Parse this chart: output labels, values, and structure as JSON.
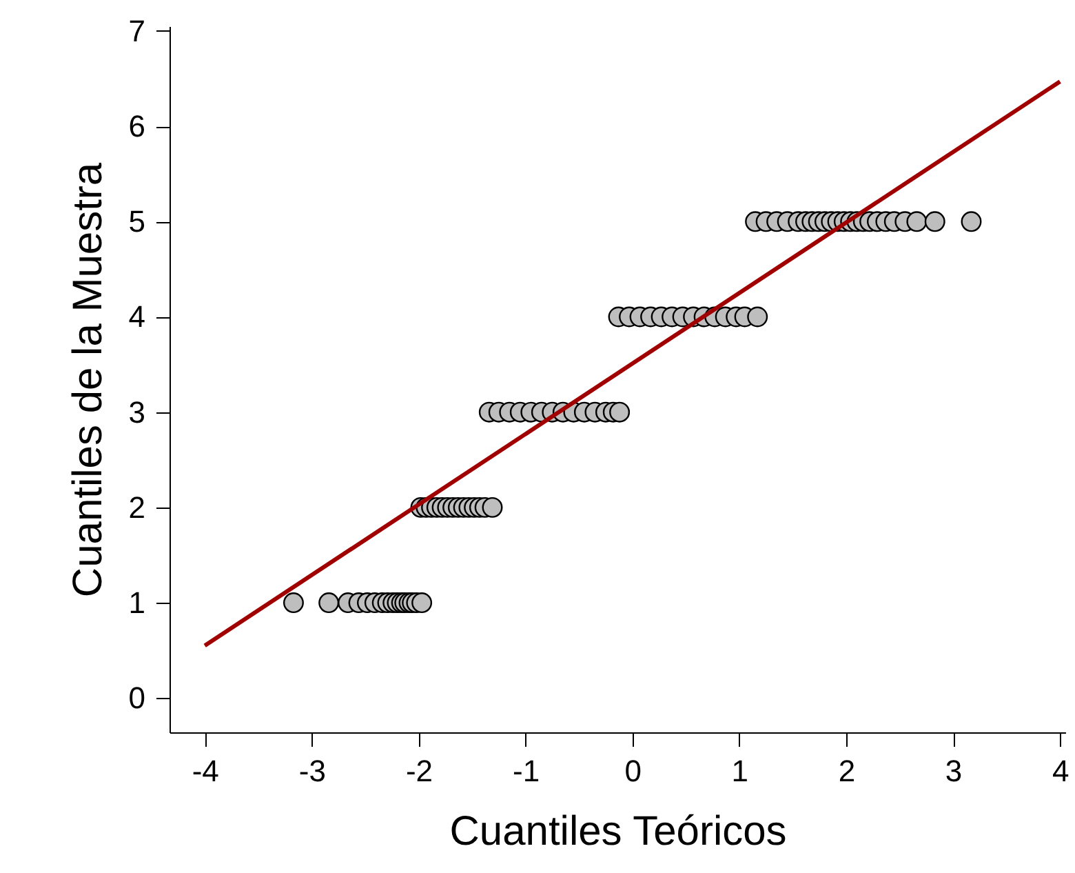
{
  "chart_data": {
    "type": "scatter",
    "xlabel": "Cuantiles Teóricos",
    "ylabel": "Cuantiles de la Muestra",
    "xlim": [
      -4.33,
      4.05
    ],
    "ylim": [
      -0.36,
      7.05
    ],
    "xticks": [
      -4,
      -3,
      -2,
      -1,
      0,
      1,
      2,
      3,
      4
    ],
    "yticks": [
      0,
      1,
      2,
      3,
      4,
      5,
      6,
      7
    ],
    "grid": false,
    "series": [
      {
        "marker": "circle",
        "color": "#bebebe",
        "x": [
          -3.17,
          -2.84,
          -2.66,
          -2.56,
          -2.48,
          -2.41,
          -2.34,
          -2.29,
          -2.24,
          -2.2,
          -2.16,
          -2.13,
          -2.09,
          -2.06,
          -2.02,
          -1.97,
          -1.98,
          -1.93,
          -1.88,
          -1.83,
          -1.78,
          -1.73,
          -1.68,
          -1.63,
          -1.58,
          -1.53,
          -1.48,
          -1.43,
          -1.38,
          -1.31,
          -1.34,
          -1.25,
          -1.15,
          -1.05,
          -0.95,
          -0.85,
          -0.75,
          -0.65,
          -0.55,
          -0.45,
          -0.35,
          -0.25,
          -0.18,
          -0.12,
          -0.13,
          -0.03,
          0.07,
          0.17,
          0.27,
          0.37,
          0.47,
          0.57,
          0.67,
          0.77,
          0.87,
          0.97,
          1.05,
          1.17,
          1.15,
          1.25,
          1.35,
          1.45,
          1.55,
          1.62,
          1.68,
          1.74,
          1.8,
          1.86,
          1.92,
          1.98,
          2.04,
          2.1,
          2.16,
          2.22,
          2.29,
          2.37,
          2.45,
          2.55,
          2.66,
          2.83,
          3.17
        ],
        "values": [
          1,
          1,
          1,
          1,
          1,
          1,
          1,
          1,
          1,
          1,
          1,
          1,
          1,
          1,
          1,
          1,
          2,
          2,
          2,
          2,
          2,
          2,
          2,
          2,
          2,
          2,
          2,
          2,
          2,
          2,
          3,
          3,
          3,
          3,
          3,
          3,
          3,
          3,
          3,
          3,
          3,
          3,
          3,
          3,
          4,
          4,
          4,
          4,
          4,
          4,
          4,
          4,
          4,
          4,
          4,
          4,
          4,
          4,
          5,
          5,
          5,
          5,
          5,
          5,
          5,
          5,
          5,
          5,
          5,
          5,
          5,
          5,
          5,
          5,
          5,
          5,
          5,
          5,
          5,
          5,
          5
        ]
      },
      {
        "type": "line",
        "color": "#a00000",
        "x": [
          -4,
          4
        ],
        "values": [
          0.55,
          6.47
        ]
      }
    ]
  }
}
